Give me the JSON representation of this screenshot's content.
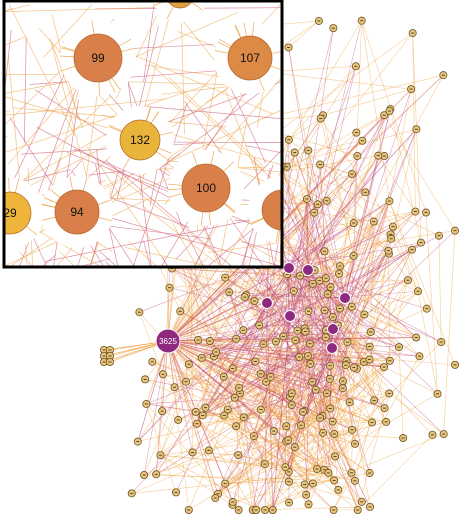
{
  "main": {
    "hub_label": "3625"
  },
  "inset": {
    "nodes": [
      {
        "label": "99"
      },
      {
        "label": "107"
      },
      {
        "label": "132"
      },
      {
        "label": "100"
      },
      {
        "label": "94"
      },
      {
        "label": "29"
      }
    ]
  }
}
